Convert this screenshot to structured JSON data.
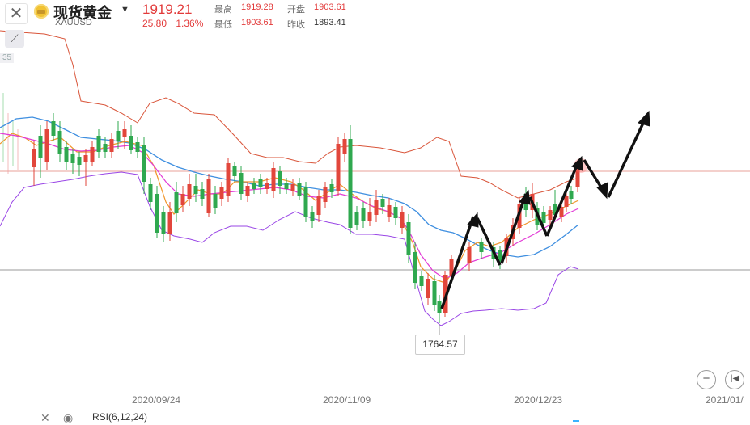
{
  "header": {
    "close_icon": "close-icon",
    "name": "现货黄金",
    "symbol": "XAUUSD",
    "price": "1919.21",
    "change": "25.80",
    "change_pct": "1.36%",
    "high_label": "最高",
    "high": "1919.28",
    "open_label": "开盘",
    "open": "1903.61",
    "low_label": "最低",
    "low": "1903.61",
    "prev_label": "昨收",
    "prev_close": "1893.41"
  },
  "toolbar": {
    "draw_tool_icon": "line-draw-icon",
    "faint_label": "35"
  },
  "footer": {
    "close_icon": "close-icon",
    "settings_icon": "eye-icon",
    "rsi_label": "RSI(6,12,24)"
  },
  "controls": {
    "zoom_out_icon": "minus-circle-icon",
    "skip_start_icon": "skip-start-icon"
  },
  "chart_data": {
    "type": "candlestick",
    "x_ticks": [
      "2020/09/24",
      "2020/11/09",
      "2020/12/23",
      "2021/01/"
    ],
    "low_annotation": "1764.57",
    "current_price_line": 1919.21,
    "reference_line": 1893.41,
    "colors": {
      "up": "#e2463b",
      "down": "#2fa84f",
      "ma_blue": "#3f8fe0",
      "ma_orange": "#f0952a",
      "ma_magenta": "#e23ad6",
      "boll_upper": "#d9553a",
      "boll_lower": "#9a47e6"
    }
  }
}
